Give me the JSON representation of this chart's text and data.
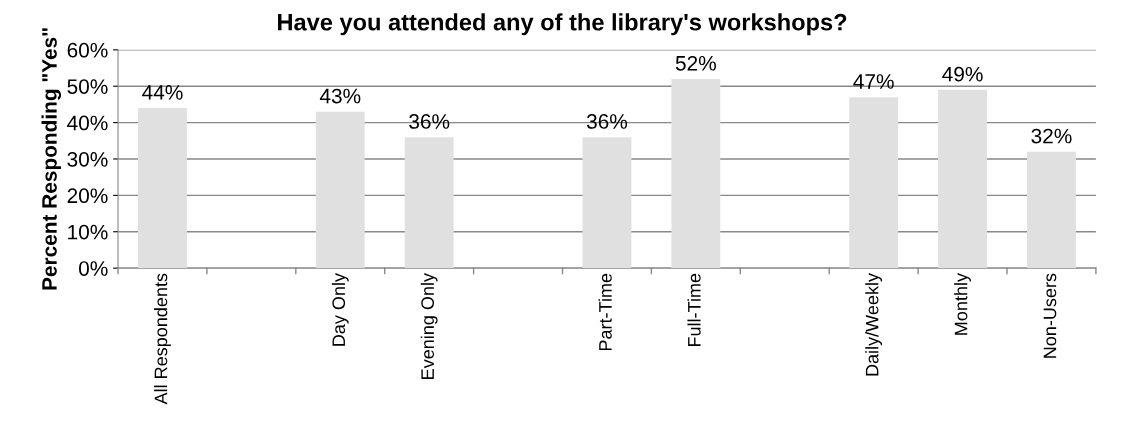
{
  "chart_data": {
    "type": "bar",
    "title": "Have you attended any of the library's workshops?",
    "ylabel": "Percent Responding \"Yes\"",
    "categories": [
      "All Respondents",
      null,
      "Day Only",
      "Evening Only",
      null,
      "Part-Time",
      "Full-Time",
      null,
      "Daily/Weekly",
      "Monthly",
      "Non-Users"
    ],
    "values": [
      44,
      null,
      43,
      36,
      null,
      36,
      52,
      null,
      47,
      49,
      32
    ],
    "value_labels": [
      "44%",
      null,
      "43%",
      "36%",
      null,
      "36%",
      "52%",
      null,
      "47%",
      "49%",
      "32%"
    ],
    "color": "#e0e0e0",
    "ylim": [
      0,
      60
    ],
    "yticks": [
      {
        "value": 0,
        "label": "0%"
      },
      {
        "value": 10,
        "label": "10%"
      },
      {
        "value": 20,
        "label": "20%"
      },
      {
        "value": 30,
        "label": "30%"
      },
      {
        "value": 40,
        "label": "40%"
      },
      {
        "value": 50,
        "label": "50%"
      },
      {
        "value": 60,
        "label": "60%"
      }
    ],
    "grid": "y",
    "legend": false
  }
}
